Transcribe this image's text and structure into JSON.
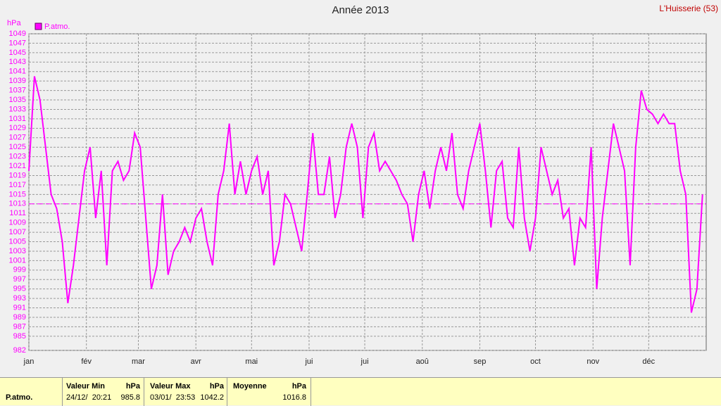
{
  "chart_data": {
    "type": "line",
    "title": "Année 2013",
    "station": "L'Huisserie (53)",
    "y_label": "hPa",
    "series": [
      {
        "name": "P.atmo.",
        "color": "#ff00ff",
        "x": [
          1,
          4,
          7,
          10,
          13,
          16,
          19,
          22,
          25,
          28,
          31,
          34,
          37,
          40,
          43,
          46,
          49,
          52,
          55,
          58,
          61,
          64,
          67,
          70,
          73,
          76,
          79,
          82,
          85,
          88,
          91,
          94,
          97,
          100,
          103,
          106,
          109,
          112,
          115,
          118,
          121,
          124,
          127,
          130,
          133,
          136,
          139,
          142,
          145,
          148,
          151,
          154,
          157,
          160,
          163,
          166,
          169,
          172,
          175,
          178,
          181,
          184,
          187,
          190,
          193,
          196,
          199,
          202,
          205,
          208,
          211,
          214,
          217,
          220,
          223,
          226,
          229,
          232,
          235,
          238,
          241,
          244,
          247,
          250,
          253,
          256,
          259,
          262,
          265,
          268,
          271,
          274,
          277,
          280,
          283,
          286,
          289,
          292,
          295,
          298,
          301,
          304,
          307,
          310,
          313,
          316,
          319,
          322,
          325,
          328,
          331,
          334,
          337,
          340,
          343,
          346,
          349,
          352,
          355,
          358,
          361,
          364
        ],
        "values": [
          1020,
          1040,
          1035,
          1025,
          1015,
          1012,
          1005,
          992,
          1000,
          1010,
          1020,
          1025,
          1010,
          1020,
          1000,
          1020,
          1022,
          1018,
          1020,
          1028,
          1025,
          1010,
          995,
          1000,
          1015,
          998,
          1003,
          1005,
          1008,
          1005,
          1010,
          1012,
          1005,
          1000,
          1015,
          1020,
          1030,
          1015,
          1022,
          1015,
          1020,
          1023,
          1015,
          1020,
          1000,
          1005,
          1015,
          1013,
          1008,
          1003,
          1015,
          1028,
          1015,
          1015,
          1023,
          1010,
          1015,
          1025,
          1030,
          1025,
          1010,
          1025,
          1028,
          1020,
          1022,
          1020,
          1018,
          1015,
          1013,
          1005,
          1015,
          1020,
          1012,
          1020,
          1025,
          1020,
          1028,
          1015,
          1012,
          1020,
          1025,
          1030,
          1020,
          1008,
          1020,
          1022,
          1010,
          1008,
          1025,
          1010,
          1003,
          1010,
          1025,
          1020,
          1015,
          1018,
          1010,
          1012,
          1000,
          1010,
          1008,
          1025,
          995,
          1010,
          1020,
          1030,
          1025,
          1020,
          1000,
          1025,
          1037,
          1033,
          1032,
          1030,
          1032,
          1030,
          1030,
          1020,
          1015,
          990,
          995,
          1015
        ]
      }
    ],
    "reference_value": 1013,
    "xlim": [
      1,
      366
    ],
    "xticks": [
      {
        "value": 1,
        "label": "jan"
      },
      {
        "value": 32,
        "label": "fév"
      },
      {
        "value": 60,
        "label": "mar"
      },
      {
        "value": 91,
        "label": "avr"
      },
      {
        "value": 121,
        "label": "mai"
      },
      {
        "value": 152,
        "label": "jui"
      },
      {
        "value": 182,
        "label": "jui"
      },
      {
        "value": 213,
        "label": "aoû"
      },
      {
        "value": 244,
        "label": "sep"
      },
      {
        "value": 274,
        "label": "oct"
      },
      {
        "value": 305,
        "label": "nov"
      },
      {
        "value": 335,
        "label": "déc"
      }
    ],
    "ylim": [
      982,
      1049
    ],
    "yticks": [
      982,
      985,
      987,
      989,
      991,
      993,
      995,
      997,
      999,
      1001,
      1003,
      1005,
      1007,
      1009,
      1011,
      1013,
      1015,
      1017,
      1019,
      1021,
      1023,
      1025,
      1027,
      1029,
      1031,
      1033,
      1035,
      1037,
      1039,
      1041,
      1043,
      1045,
      1047,
      1049
    ],
    "grid": true
  },
  "summary": {
    "label": "P.atmo.",
    "columns": [
      {
        "title": "Valeur Min",
        "unit": "hPa",
        "date": "24/12/  20:21",
        "value": 985.8
      },
      {
        "title": "Valeur Max",
        "unit": "hPa",
        "date": "03/01/  23:53",
        "value": 1042.2
      },
      {
        "title": "Moyenne",
        "unit": "hPa",
        "value": 1016.8
      }
    ]
  }
}
